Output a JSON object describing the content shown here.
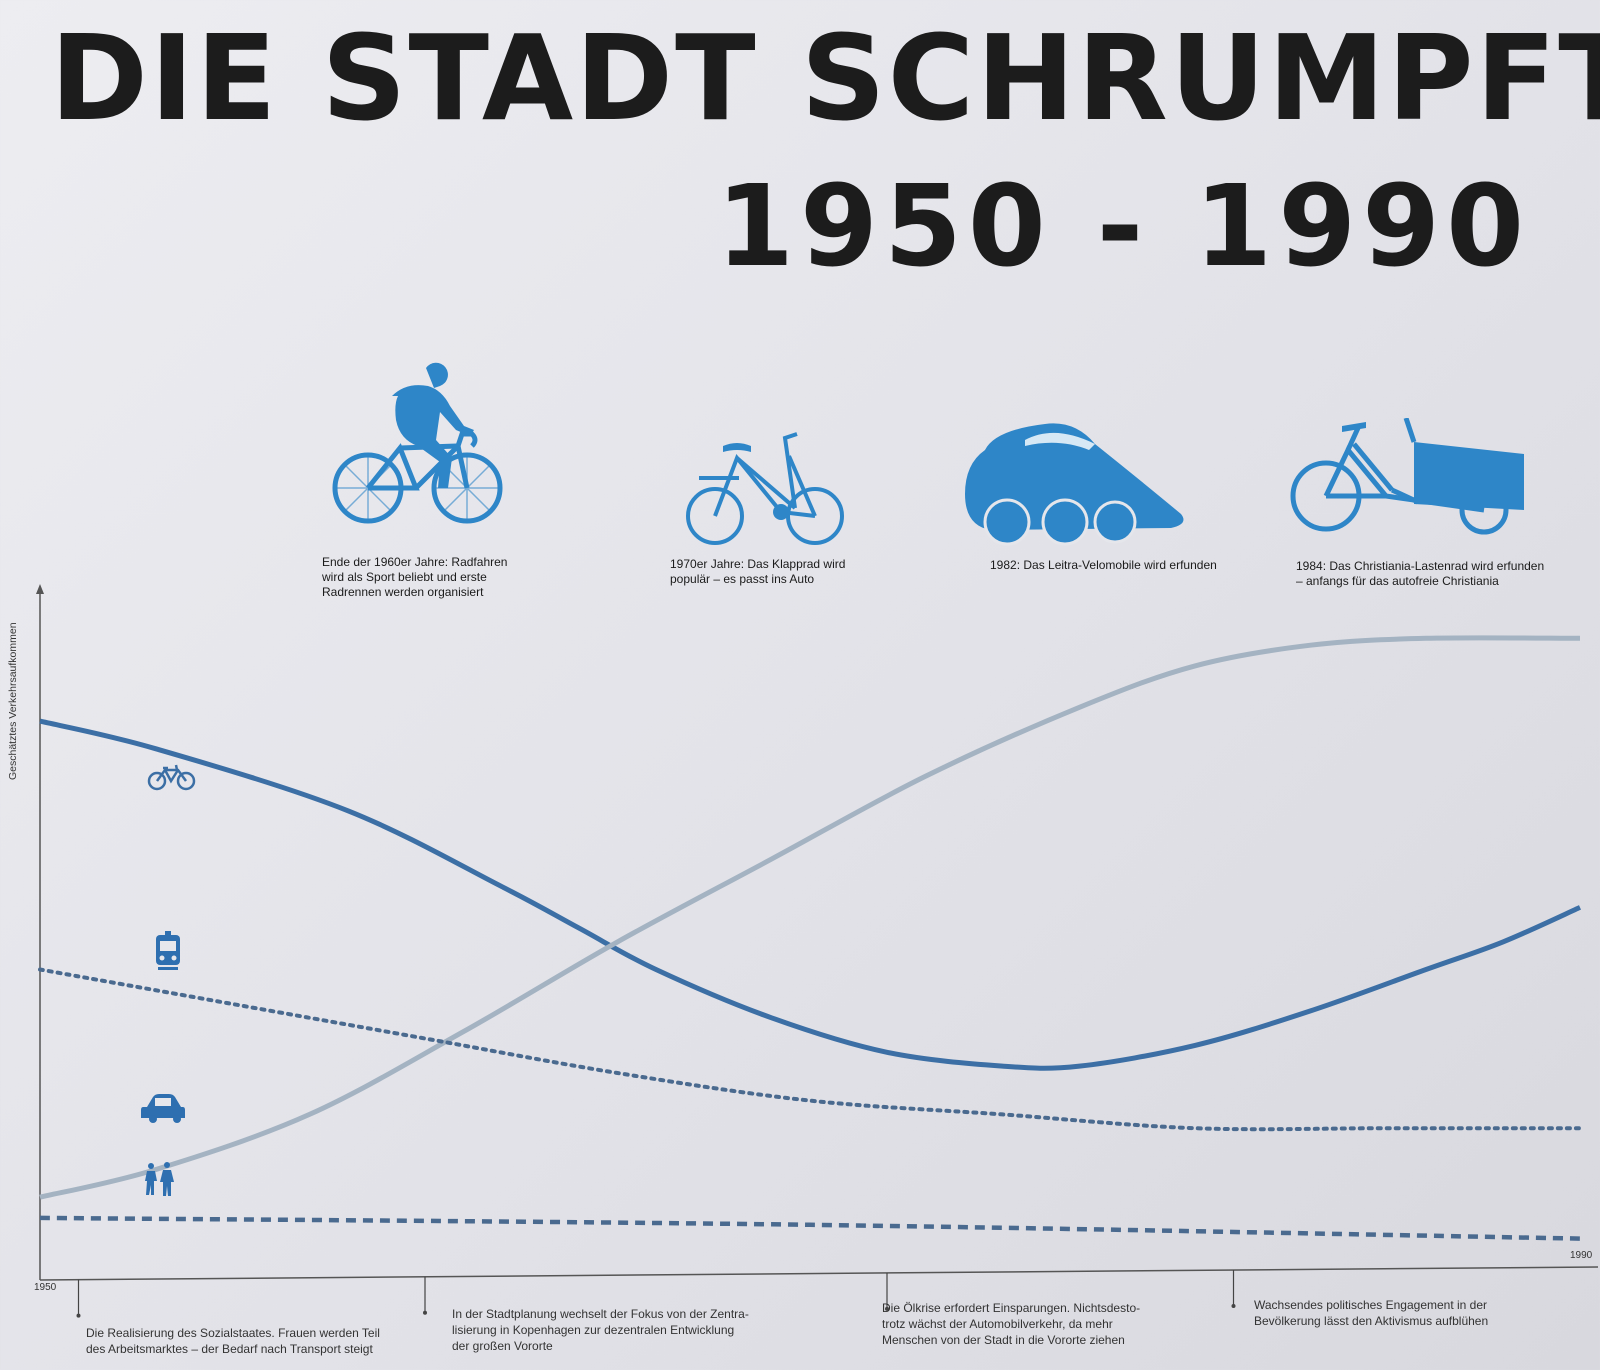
{
  "title": "DIE STADT SCHRUMPFT",
  "subtitle": "1950 - 1990",
  "milestones": [
    {
      "icon": "racing-cyclist-icon",
      "caption": "Ende der 1960er Jahre: Radfahren\nwird als Sport beliebt und erste\nRadrennen werden organisiert"
    },
    {
      "icon": "folding-bike-icon",
      "caption": "1970er Jahre: Das Klapprad wird\npopulär – es passt ins Auto"
    },
    {
      "icon": "velomobile-icon",
      "caption": "1982: Das Leitra-Velomobile wird erfunden"
    },
    {
      "icon": "cargo-bike-icon",
      "caption": "1984: Das Christiania-Lastenrad wird erfunden\n– anfangs für das autofreie Christiania"
    }
  ],
  "events": [
    {
      "text": "Die Realisierung des Sozialstaates. Frauen werden Teil\ndes Arbeitsmarktes – der Bedarf nach Transport steigt"
    },
    {
      "text": "In der Stadtplanung wechselt der Fokus von der Zentra-\nlisierung in Kopenhagen zur dezentralen Entwicklung\nder großen Vororte"
    },
    {
      "text": "Die Ölkrise erfordert Einsparungen. Nichtsdesto-\ntrotz wächst der Automobilverkehr, da mehr\nMenschen von der Stadt in die Vororte ziehen"
    },
    {
      "text": "Wachsendes politisches Engagement in der\nBevölkerung lässt den Aktivismus aufblühen"
    }
  ],
  "colors": {
    "bike": "#3c6fa5",
    "car": "#a4b3c2",
    "transit": "#4a6a8f",
    "walk": "#4a6a8f",
    "icon_blue": "#2e86c8",
    "axis": "#555555"
  },
  "chart_data": {
    "type": "line",
    "ylabel": "Geschätztes Verkehrsaufkommen",
    "xlabel": "",
    "tick_labels": [
      "1950",
      "1990"
    ],
    "xlim": [
      1950,
      1990
    ],
    "ylim": [
      0,
      100
    ],
    "grid": false,
    "series": [
      {
        "id": "bike",
        "icon": "bicycle-icon",
        "style": "solid",
        "points": [
          [
            1950,
            81
          ],
          [
            1953,
            77
          ],
          [
            1958,
            68
          ],
          [
            1962,
            57
          ],
          [
            1964,
            51
          ],
          [
            1966,
            45
          ],
          [
            1969,
            38
          ],
          [
            1972,
            33
          ],
          [
            1975,
            31
          ],
          [
            1977,
            31
          ],
          [
            1980,
            34
          ],
          [
            1983,
            39
          ],
          [
            1986,
            45
          ],
          [
            1988,
            49
          ],
          [
            1990,
            54
          ]
        ]
      },
      {
        "id": "car",
        "icon": "car-icon",
        "style": "solid-light",
        "points": [
          [
            1950,
            12
          ],
          [
            1953,
            16
          ],
          [
            1957,
            24
          ],
          [
            1961,
            36
          ],
          [
            1965,
            49
          ],
          [
            1969,
            61
          ],
          [
            1973,
            73
          ],
          [
            1977,
            83
          ],
          [
            1980,
            89
          ],
          [
            1983,
            92
          ],
          [
            1986,
            93
          ],
          [
            1990,
            93
          ]
        ]
      },
      {
        "id": "transit",
        "icon": "train-icon",
        "style": "dotted",
        "points": [
          [
            1950,
            45
          ],
          [
            1955,
            40
          ],
          [
            1960,
            35
          ],
          [
            1965,
            30
          ],
          [
            1970,
            26
          ],
          [
            1975,
            24
          ],
          [
            1980,
            22
          ],
          [
            1985,
            22
          ],
          [
            1990,
            22
          ]
        ]
      },
      {
        "id": "walk",
        "icon": "pedestrians-icon",
        "style": "dashed",
        "points": [
          [
            1950,
            9
          ],
          [
            1970,
            8
          ],
          [
            1990,
            6
          ]
        ]
      }
    ],
    "event_years": [
      1951,
      1960,
      1972,
      1981
    ]
  }
}
